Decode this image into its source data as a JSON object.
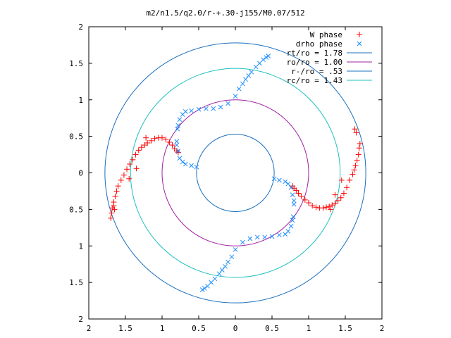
{
  "chart_data": {
    "type": "scatter",
    "title": "m2/n1.5/q2.0/r-+.30-j155/M0.07/512",
    "xlim": [
      -2,
      2
    ],
    "ylim": [
      -2,
      2
    ],
    "x_tick_labels": [
      "2",
      "1.5",
      "1",
      "0.5",
      "0",
      "0.5",
      "1",
      "1.5",
      "2"
    ],
    "y_tick_labels": [
      "2",
      "1.5",
      "1",
      "0.5",
      "0",
      "0.5",
      "1",
      "1.5",
      "2"
    ],
    "x_ticks": [
      -2,
      -1.5,
      -1,
      -0.5,
      0,
      0.5,
      1,
      1.5,
      2
    ],
    "y_ticks": [
      2,
      1.5,
      1,
      0.5,
      0,
      -0.5,
      -1,
      -1.5,
      -2
    ],
    "legend_position": "top-right",
    "legend": [
      {
        "label": "W phase",
        "marker": "+",
        "color": "#ff0000"
      },
      {
        "label": "drho phase",
        "marker": "x",
        "color": "#1a8cff"
      },
      {
        "label": "rt/ro = 1.78",
        "line": true,
        "color": "#1a6fbf"
      },
      {
        "label": "ro/ro = 1.00",
        "line": true,
        "color": "#a020a0"
      },
      {
        "label": "r-/ro = .53",
        "line": true,
        "color": "#1a6fbf"
      },
      {
        "label": "rc/ro = 1.43",
        "line": true,
        "color": "#20c0c0"
      }
    ],
    "circles": [
      {
        "r": 1.78,
        "color": "#1a6fbf"
      },
      {
        "r": 1.0,
        "color": "#a020a0"
      },
      {
        "r": 0.53,
        "color": "#1a6fbf"
      },
      {
        "r": 1.43,
        "color": "#20c0c0"
      }
    ],
    "series": [
      {
        "name": "W phase",
        "marker": "+",
        "color": "#ff0000",
        "x": [
          -1.7,
          -1.69,
          -1.68,
          -1.66,
          -1.64,
          -1.62,
          -1.6,
          -1.56,
          -1.52,
          -1.48,
          -1.44,
          -1.4,
          -1.36,
          -1.32,
          -1.28,
          -1.24,
          -1.2,
          -1.15,
          -1.1,
          -1.05,
          -1.0,
          -0.95,
          -0.9,
          -0.86,
          -0.83,
          -0.8,
          -0.78,
          -1.65,
          -1.66,
          -1.45,
          -1.35,
          -1.22,
          1.7,
          1.69,
          1.68,
          1.66,
          1.64,
          1.62,
          1.6,
          1.56,
          1.52,
          1.48,
          1.44,
          1.4,
          1.36,
          1.32,
          1.28,
          1.24,
          1.2,
          1.15,
          1.1,
          1.05,
          1.0,
          0.95,
          0.9,
          0.86,
          0.83,
          0.8,
          0.78,
          1.63,
          1.65,
          1.45,
          1.3,
          1.36
        ],
        "y": [
          -0.62,
          -0.55,
          -0.48,
          -0.4,
          -0.32,
          -0.25,
          -0.18,
          -0.1,
          -0.03,
          0.05,
          0.12,
          0.18,
          0.25,
          0.31,
          0.35,
          0.38,
          0.41,
          0.44,
          0.47,
          0.48,
          0.48,
          0.46,
          0.42,
          0.38,
          0.33,
          0.3,
          0.28,
          -0.5,
          -0.45,
          -0.08,
          0.06,
          0.48,
          0.4,
          0.34,
          0.25,
          0.17,
          0.1,
          0.04,
          -0.02,
          -0.1,
          -0.2,
          -0.28,
          -0.34,
          -0.38,
          -0.42,
          -0.44,
          -0.46,
          -0.47,
          -0.48,
          -0.48,
          -0.47,
          -0.45,
          -0.41,
          -0.37,
          -0.32,
          -0.28,
          -0.24,
          -0.21,
          -0.18,
          0.6,
          0.55,
          -0.1,
          -0.5,
          -0.3
        ]
      },
      {
        "name": "drho phase",
        "marker": "x",
        "color": "#1a8cff",
        "x": [
          -0.53,
          -0.6,
          -0.68,
          -0.72,
          -0.76,
          -0.78,
          -0.8,
          -0.8,
          -0.79,
          -0.78,
          -0.76,
          -0.72,
          -0.68,
          -0.6,
          -0.5,
          -0.4,
          -0.3,
          -0.2,
          -0.1,
          0.0,
          0.05,
          0.1,
          0.14,
          0.18,
          0.22,
          0.28,
          0.33,
          0.38,
          0.42,
          0.45,
          0.53,
          0.6,
          0.68,
          0.72,
          0.76,
          0.78,
          0.8,
          0.8,
          0.79,
          0.78,
          0.76,
          0.72,
          0.68,
          0.6,
          0.5,
          0.4,
          0.3,
          0.2,
          0.1,
          0.0,
          -0.05,
          -0.1,
          -0.14,
          -0.18,
          -0.22,
          -0.28,
          -0.33,
          -0.38,
          -0.42,
          -0.45
        ],
        "y": [
          0.08,
          0.1,
          0.12,
          0.15,
          0.2,
          0.3,
          0.38,
          0.43,
          0.6,
          0.65,
          0.73,
          0.8,
          0.84,
          0.85,
          0.87,
          0.88,
          0.88,
          0.9,
          0.95,
          1.05,
          1.15,
          1.22,
          1.28,
          1.33,
          1.38,
          1.45,
          1.5,
          1.55,
          1.58,
          1.6,
          -0.08,
          -0.1,
          -0.12,
          -0.15,
          -0.2,
          -0.3,
          -0.38,
          -0.43,
          -0.6,
          -0.65,
          -0.73,
          -0.8,
          -0.84,
          -0.85,
          -0.87,
          -0.88,
          -0.88,
          -0.9,
          -0.95,
          -1.05,
          -1.15,
          -1.22,
          -1.28,
          -1.33,
          -1.38,
          -1.45,
          -1.5,
          -1.55,
          -1.58,
          -1.6
        ]
      }
    ]
  }
}
